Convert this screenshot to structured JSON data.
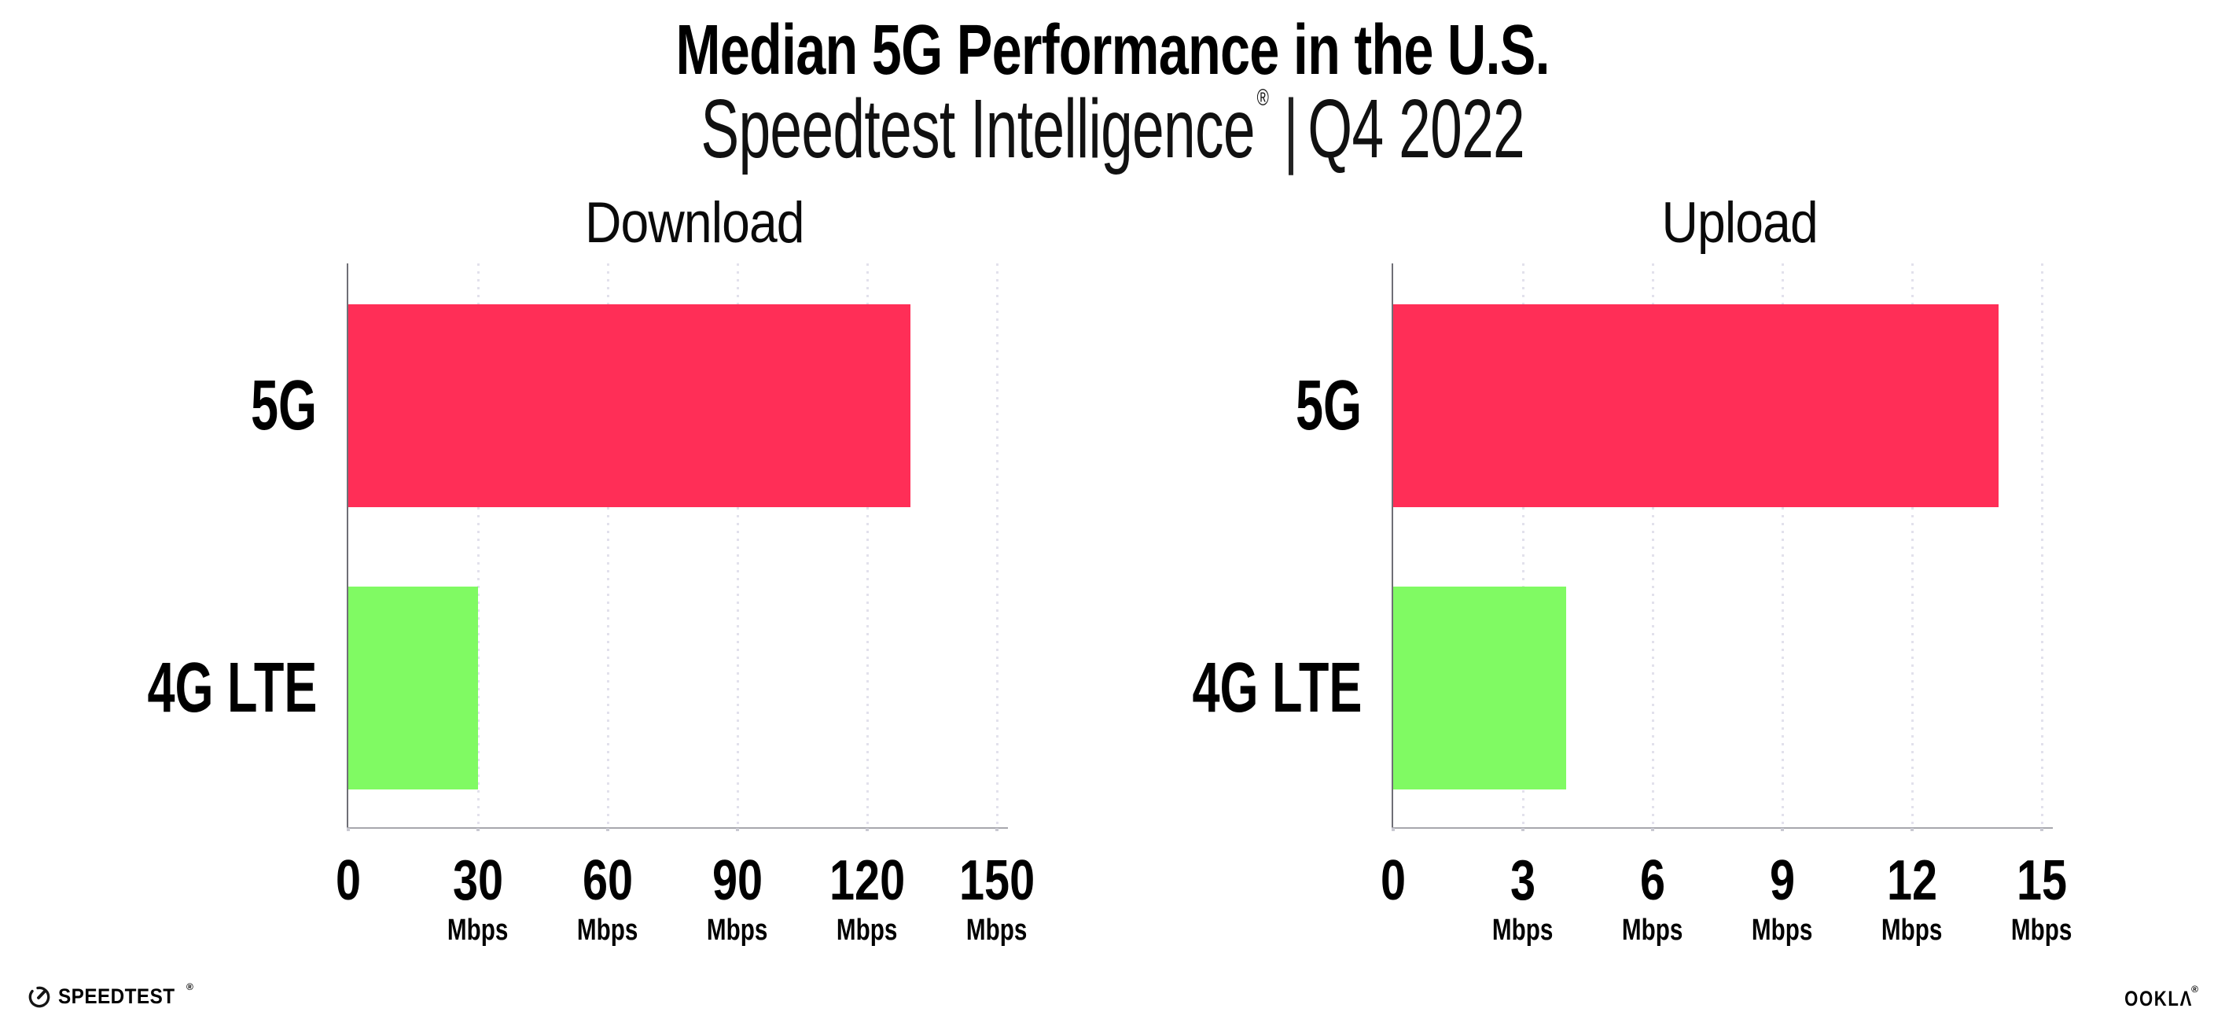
{
  "header": {
    "title": "Median 5G Performance in the U.S.",
    "subtitle_brand": "Speedtest Intelligence",
    "subtitle_reg_mark": "®",
    "subtitle_separator": "|",
    "subtitle_period": "Q4 2022"
  },
  "chart_data": [
    {
      "type": "bar",
      "orientation": "horizontal",
      "title": "Download",
      "categories": [
        "5G",
        "4G LTE"
      ],
      "values": [
        130,
        30
      ],
      "unit": "Mbps",
      "xticks": [
        0,
        30,
        60,
        90,
        120,
        150
      ],
      "xlim": [
        0,
        150
      ],
      "grid": true,
      "bar_colors": [
        "#ff2e57",
        "#80fa63"
      ]
    },
    {
      "type": "bar",
      "orientation": "horizontal",
      "title": "Upload",
      "categories": [
        "5G",
        "4G LTE"
      ],
      "values": [
        14,
        4
      ],
      "unit": "Mbps",
      "xticks": [
        0,
        3,
        6,
        9,
        12,
        15
      ],
      "xlim": [
        0,
        15
      ],
      "grid": true,
      "bar_colors": [
        "#ff2e57",
        "#80fa63"
      ]
    }
  ],
  "colors": {
    "background": "#ffffff",
    "bar_5g": "#ff2e57",
    "bar_4g": "#80fa63",
    "gridline": "#e2e1ec",
    "axis_line": "#a7a7ad",
    "axis_vertical": "#6f6f76",
    "text": "#000000"
  },
  "footer": {
    "speedtest_logo_text": "SPEEDTEST",
    "speedtest_reg_mark": "®",
    "ookla_logo_text": "OOKLΛ",
    "ookla_reg_mark": "®"
  }
}
